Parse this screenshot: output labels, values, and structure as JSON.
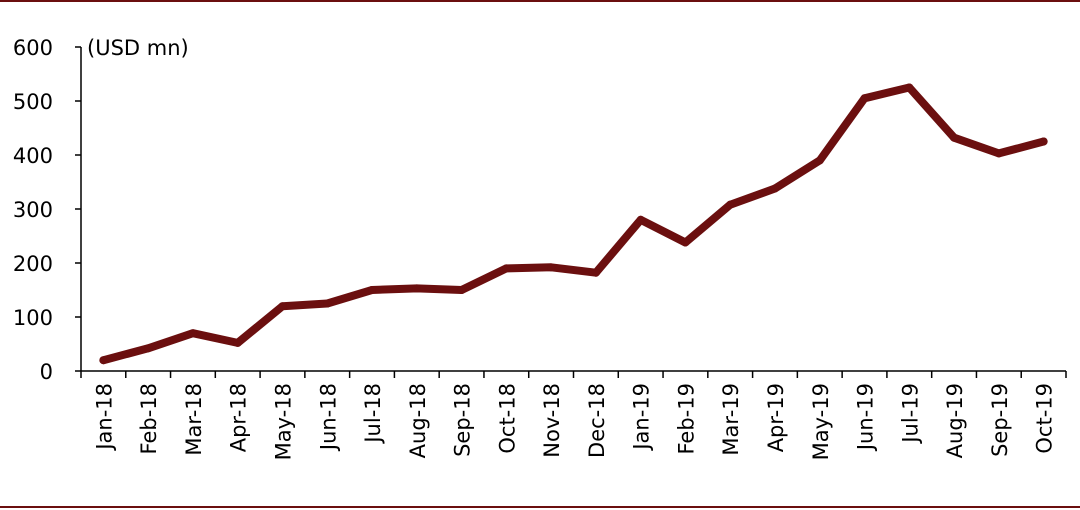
{
  "chart_data": {
    "type": "line",
    "title": "",
    "xlabel": "",
    "ylabel": "",
    "unit_label": "(USD mn)",
    "ylim": [
      0,
      600
    ],
    "yticks": [
      0,
      100,
      200,
      300,
      400,
      500,
      600
    ],
    "grid": false,
    "legend": "none",
    "line_color": "#6b0f0f",
    "categories": [
      "Jan-18",
      "Feb-18",
      "Mar-18",
      "Apr-18",
      "May-18",
      "Jun-18",
      "Jul-18",
      "Aug-18",
      "Sep-18",
      "Oct-18",
      "Nov-18",
      "Dec-18",
      "Jan-19",
      "Feb-19",
      "Mar-19",
      "Apr-19",
      "May-19",
      "Jun-19",
      "Jul-19",
      "Aug-19",
      "Sep-19",
      "Oct-19"
    ],
    "series": [
      {
        "values": [
          20,
          42,
          70,
          52,
          120,
          125,
          150,
          153,
          150,
          190,
          192,
          182,
          280,
          238,
          308,
          338,
          390,
          505,
          525,
          432,
          403,
          425
        ]
      }
    ]
  }
}
